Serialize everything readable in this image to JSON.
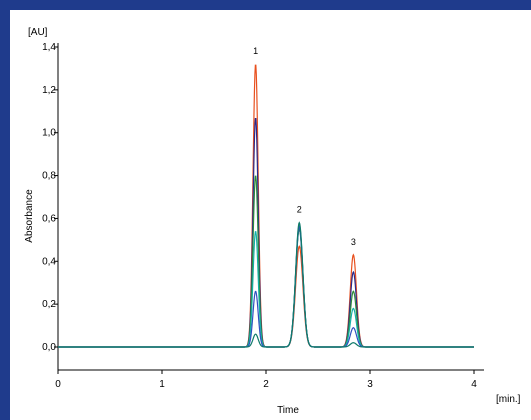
{
  "chart_data": {
    "type": "line",
    "title": "",
    "xlabel": "Time",
    "ylabel": "Absorbance",
    "x_unit_label": "[min.]",
    "y_unit_label": "[AU]",
    "xlim": [
      0,
      4
    ],
    "ylim": [
      0,
      1.4
    ],
    "x_ticks": [
      0,
      1,
      2,
      3,
      4
    ],
    "x_tick_labels": [
      "0",
      "1",
      "2",
      "3",
      "4"
    ],
    "y_ticks": [
      0,
      0.2,
      0.4,
      0.6,
      0.8,
      1.0,
      1.2,
      1.4
    ],
    "y_tick_labels": [
      "0,0",
      "0,2",
      "0,4",
      "0,6",
      "0,8",
      "1,0",
      "1,2",
      "1,4"
    ],
    "grid": false,
    "legend": "none",
    "peaks": [
      {
        "label": "1",
        "time": 1.9,
        "width": 0.025
      },
      {
        "label": "2",
        "time": 2.32,
        "width": 0.035
      },
      {
        "label": "3",
        "time": 2.84,
        "width": 0.03
      }
    ],
    "series": [
      {
        "color": "#e8501e",
        "heights": [
          1.32,
          0.47,
          0.43
        ]
      },
      {
        "color": "#2a2a8c",
        "heights": [
          1.07,
          0.56,
          0.35
        ]
      },
      {
        "color": "#2e8b3a",
        "heights": [
          0.8,
          0.55,
          0.26
        ]
      },
      {
        "color": "#14b0a8",
        "heights": [
          0.54,
          0.57,
          0.18
        ]
      },
      {
        "color": "#3050c0",
        "heights": [
          0.26,
          0.56,
          0.09
        ]
      },
      {
        "color": "#0f7a6a",
        "heights": [
          0.06,
          0.58,
          0.02
        ]
      }
    ]
  }
}
